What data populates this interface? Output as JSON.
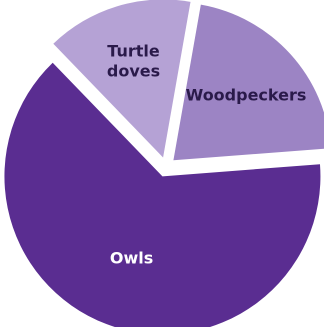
{
  "chart_data": {
    "type": "pie",
    "title": "",
    "slices": [
      {
        "label": "Woodpeckers",
        "value": 21,
        "color": "#9c84c4",
        "label_color": "#2a1a4a"
      },
      {
        "label": "Owls",
        "value": 64,
        "color": "#5a2d91",
        "label_color": "#ffffff"
      },
      {
        "label": "Turtle doves",
        "value": 15,
        "color": "#b5a2d5",
        "label_color": "#2a1a4a"
      }
    ],
    "legend": "none",
    "exploded": true
  }
}
